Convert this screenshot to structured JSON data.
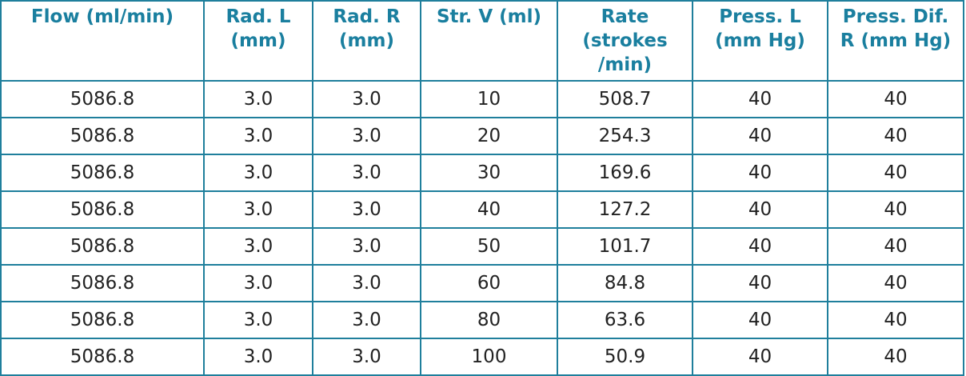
{
  "table": {
    "header": [
      [
        "Flow (ml/min)"
      ],
      [
        "Rad. L",
        "(mm)"
      ],
      [
        "Rad. R",
        "(mm)"
      ],
      [
        "Str. V (ml)"
      ],
      [
        "Rate",
        "(strokes",
        "/min)"
      ],
      [
        "Press. L",
        "(mm Hg)"
      ],
      [
        "Press. Dif.",
        "R (mm Hg)"
      ]
    ],
    "rows": [
      [
        "5086.8",
        "3.0",
        "3.0",
        "10",
        "508.7",
        "40",
        "40"
      ],
      [
        "5086.8",
        "3.0",
        "3.0",
        "20",
        "254.3",
        "40",
        "40"
      ],
      [
        "5086.8",
        "3.0",
        "3.0",
        "30",
        "169.6",
        "40",
        "40"
      ],
      [
        "5086.8",
        "3.0",
        "3.0",
        "40",
        "127.2",
        "40",
        "40"
      ],
      [
        "5086.8",
        "3.0",
        "3.0",
        "50",
        "101.7",
        "40",
        "40"
      ],
      [
        "5086.8",
        "3.0",
        "3.0",
        "60",
        "84.8",
        "40",
        "40"
      ],
      [
        "5086.8",
        "3.0",
        "3.0",
        "80",
        "63.6",
        "40",
        "40"
      ],
      [
        "5086.8",
        "3.0",
        "3.0",
        "100",
        "50.9",
        "40",
        "40"
      ]
    ]
  }
}
